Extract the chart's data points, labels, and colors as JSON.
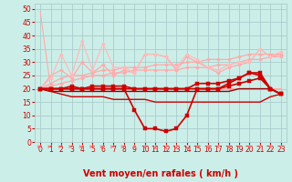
{
  "xlabel": "Vent moyen/en rafales ( km/h )",
  "xlabel_color": "#cc0000",
  "background_color": "#cceee8",
  "grid_color": "#aacccc",
  "x_ticks": [
    0,
    1,
    2,
    3,
    4,
    5,
    6,
    7,
    8,
    9,
    10,
    11,
    12,
    13,
    14,
    15,
    16,
    17,
    18,
    19,
    20,
    21,
    22,
    23
  ],
  "y_ticks": [
    0,
    5,
    10,
    15,
    20,
    25,
    30,
    35,
    40,
    45,
    50
  ],
  "ylim": [
    0,
    52
  ],
  "xlim": [
    -0.5,
    23.5
  ],
  "series": [
    {
      "y": [
        49,
        20,
        20,
        20,
        20,
        20,
        20,
        20,
        20,
        20,
        20,
        20,
        20,
        20,
        20,
        20,
        20,
        20,
        20,
        20,
        20,
        20,
        20,
        20
      ],
      "color": "#ffaaaa",
      "lw": 0.8,
      "marker": null,
      "zorder": 2
    },
    {
      "y": [
        20,
        21,
        22,
        23,
        24,
        25,
        25,
        26,
        26,
        27,
        27,
        27,
        27,
        27,
        28,
        28,
        28,
        29,
        29,
        30,
        31,
        31,
        32,
        32
      ],
      "color": "#ffaaaa",
      "lw": 0.9,
      "marker": "D",
      "ms": 2.0,
      "zorder": 3
    },
    {
      "y": [
        20,
        22,
        24,
        25,
        25,
        26,
        27,
        27,
        28,
        28,
        28,
        29,
        29,
        29,
        30,
        30,
        31,
        31,
        31,
        32,
        33,
        33,
        33,
        33
      ],
      "color": "#ffaaaa",
      "lw": 0.9,
      "marker": "D",
      "ms": 2.0,
      "zorder": 3
    },
    {
      "y": [
        20,
        25,
        27,
        24,
        30,
        26,
        29,
        25,
        27,
        26,
        33,
        33,
        32,
        27,
        32,
        30,
        28,
        26,
        28,
        29,
        30,
        35,
        32,
        33
      ],
      "color": "#ffaaaa",
      "lw": 0.9,
      "marker": "D",
      "ms": 2.0,
      "zorder": 3
    },
    {
      "y": [
        20,
        24,
        33,
        25,
        38,
        27,
        37,
        28,
        28,
        26,
        33,
        33,
        32,
        28,
        33,
        31,
        28,
        27,
        29,
        30,
        30,
        35,
        32,
        34
      ],
      "color": "#ffbbbb",
      "lw": 0.9,
      "marker": "D",
      "ms": 2.0,
      "zorder": 3
    },
    {
      "y": [
        20,
        20,
        20,
        20,
        20,
        20,
        20,
        20,
        20,
        12,
        5,
        5,
        4,
        5,
        10,
        20,
        20,
        20,
        22,
        24,
        26,
        26,
        20,
        18
      ],
      "color": "#cc0000",
      "lw": 1.2,
      "marker": "s",
      "ms": 2.5,
      "zorder": 5
    },
    {
      "y": [
        20,
        20,
        20,
        20,
        20,
        20,
        20,
        20,
        20,
        20,
        20,
        20,
        20,
        20,
        20,
        20,
        20,
        20,
        21,
        22,
        23,
        24,
        20,
        18
      ],
      "color": "#cc0000",
      "lw": 1.2,
      "marker": "s",
      "ms": 2.5,
      "zorder": 4
    },
    {
      "y": [
        20,
        20,
        20,
        21,
        20,
        21,
        21,
        21,
        21,
        20,
        20,
        20,
        20,
        20,
        20,
        22,
        22,
        22,
        23,
        24,
        26,
        25,
        20,
        18
      ],
      "color": "#cc0000",
      "lw": 1.2,
      "marker": "s",
      "ms": 2.5,
      "zorder": 4
    },
    {
      "y": [
        20,
        19,
        19,
        19,
        19,
        19,
        19,
        19,
        19,
        19,
        19,
        19,
        19,
        19,
        19,
        19,
        19,
        19,
        19,
        20,
        20,
        20,
        20,
        18
      ],
      "color": "#990000",
      "lw": 1.0,
      "marker": null,
      "zorder": 3
    },
    {
      "y": [
        20,
        19,
        18,
        17,
        17,
        17,
        17,
        16,
        16,
        16,
        16,
        15,
        15,
        15,
        15,
        15,
        15,
        15,
        15,
        15,
        15,
        15,
        17,
        18
      ],
      "color": "#cc0000",
      "lw": 1.0,
      "marker": null,
      "zorder": 3
    }
  ],
  "arrow_directions": [
    0,
    0,
    0,
    0,
    0,
    0,
    0,
    0,
    0,
    45,
    45,
    90,
    90,
    90,
    90,
    135,
    135,
    135,
    135,
    135,
    135,
    135,
    135,
    135
  ],
  "arrow_color": "#ff6666",
  "tick_color": "#cc0000",
  "tick_fontsize": 5.5,
  "xlabel_fontsize": 7.0
}
